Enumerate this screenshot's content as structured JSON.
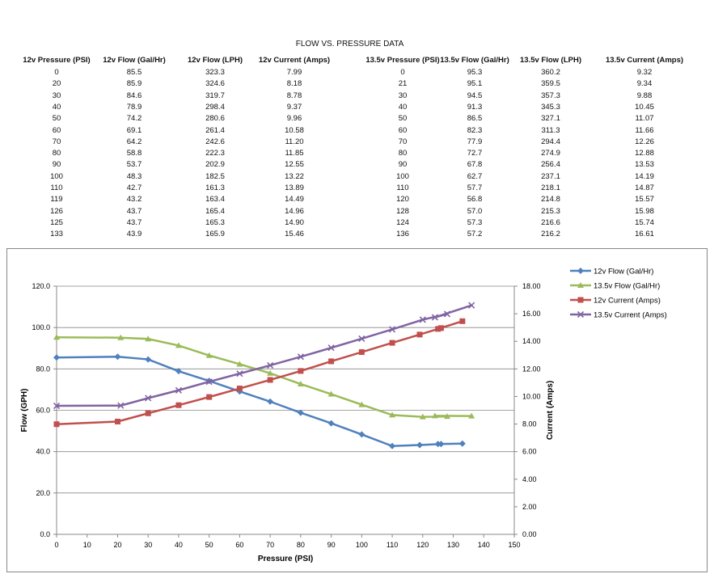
{
  "chart_data": {
    "type": "line",
    "table": {
      "title": "FLOW  VS.  PRESSURE DATA",
      "headers": [
        "12v Pressure (PSI)",
        "12v Flow (Gal/Hr)",
        "12v Flow (LPH)",
        "12v Current (Amps)",
        "13.5v Pressure (PSI)",
        "13.5v Flow (Gal/Hr)",
        "13.5v Flow (LPH)",
        "13.5v Current (Amps)"
      ],
      "rows": [
        [
          "0",
          "85.5",
          "323.3",
          "7.99",
          "0",
          "95.3",
          "360.2",
          "9.32"
        ],
        [
          "20",
          "85.9",
          "324.6",
          "8.18",
          "21",
          "95.1",
          "359.5",
          "9.34"
        ],
        [
          "30",
          "84.6",
          "319.7",
          "8.78",
          "30",
          "94.5",
          "357.3",
          "9.88"
        ],
        [
          "40",
          "78.9",
          "298.4",
          "9.37",
          "40",
          "91.3",
          "345.3",
          "10.45"
        ],
        [
          "50",
          "74.2",
          "280.6",
          "9.96",
          "50",
          "86.5",
          "327.1",
          "11.07"
        ],
        [
          "60",
          "69.1",
          "261.4",
          "10.58",
          "60",
          "82.3",
          "311.3",
          "11.66"
        ],
        [
          "70",
          "64.2",
          "242.6",
          "11.20",
          "70",
          "77.9",
          "294.4",
          "12.26"
        ],
        [
          "80",
          "58.8",
          "222.3",
          "11.85",
          "80",
          "72.7",
          "274.9",
          "12.88"
        ],
        [
          "90",
          "53.7",
          "202.9",
          "12.55",
          "90",
          "67.8",
          "256.4",
          "13.53"
        ],
        [
          "100",
          "48.3",
          "182.5",
          "13.22",
          "100",
          "62.7",
          "237.1",
          "14.19"
        ],
        [
          "110",
          "42.7",
          "161.3",
          "13.89",
          "110",
          "57.7",
          "218.1",
          "14.87"
        ],
        [
          "119",
          "43.2",
          "163.4",
          "14.49",
          "120",
          "56.8",
          "214.8",
          "15.57"
        ],
        [
          "126",
          "43.7",
          "165.4",
          "14.96",
          "128",
          "57.0",
          "215.3",
          "15.98"
        ],
        [
          "125",
          "43.7",
          "165.3",
          "14.90",
          "124",
          "57.3",
          "216.6",
          "15.74"
        ],
        [
          "133",
          "43.9",
          "165.9",
          "15.46",
          "136",
          "57.2",
          "216.2",
          "16.61"
        ]
      ]
    },
    "xlabel": "Pressure (PSI)",
    "ylabel": "Flow (GPH)",
    "y2label": "Current (Amps)",
    "xlim": [
      0,
      150
    ],
    "ylim": [
      0,
      120
    ],
    "y2lim": [
      0,
      18
    ],
    "xticks": [
      "0",
      "10",
      "20",
      "30",
      "40",
      "50",
      "60",
      "70",
      "80",
      "90",
      "100",
      "110",
      "120",
      "130",
      "140",
      "150"
    ],
    "yticks": [
      "0.0",
      "20.0",
      "40.0",
      "60.0",
      "80.0",
      "100.0",
      "120.0"
    ],
    "y2ticks": [
      "0.00",
      "2.00",
      "4.00",
      "6.00",
      "8.00",
      "10.00",
      "12.00",
      "14.00",
      "16.00",
      "18.00"
    ],
    "grid": true,
    "legend_position": "right",
    "series": [
      {
        "name": "12v Flow (Gal/Hr)",
        "axis": "left",
        "color": "#4F81BD",
        "marker": "diamond",
        "x": [
          0,
          20,
          30,
          40,
          50,
          60,
          70,
          80,
          90,
          100,
          110,
          119,
          126,
          125,
          133
        ],
        "y": [
          85.5,
          85.9,
          84.6,
          78.9,
          74.2,
          69.1,
          64.2,
          58.8,
          53.7,
          48.3,
          42.7,
          43.2,
          43.7,
          43.7,
          43.9
        ]
      },
      {
        "name": "13.5v Flow (Gal/Hr)",
        "axis": "left",
        "color": "#9BBB59",
        "marker": "triangle",
        "x": [
          0,
          21,
          30,
          40,
          50,
          60,
          70,
          80,
          90,
          100,
          110,
          120,
          128,
          124,
          136
        ],
        "y": [
          95.3,
          95.1,
          94.5,
          91.3,
          86.5,
          82.3,
          77.9,
          72.7,
          67.8,
          62.7,
          57.7,
          56.8,
          57.0,
          57.3,
          57.2
        ]
      },
      {
        "name": "12v Current (Amps)",
        "axis": "right",
        "color": "#C0504D",
        "marker": "square",
        "x": [
          0,
          20,
          30,
          40,
          50,
          60,
          70,
          80,
          90,
          100,
          110,
          119,
          126,
          125,
          133
        ],
        "y": [
          7.99,
          8.18,
          8.78,
          9.37,
          9.96,
          10.58,
          11.2,
          11.85,
          12.55,
          13.22,
          13.89,
          14.49,
          14.96,
          14.9,
          15.46
        ]
      },
      {
        "name": "13.5v Current (Amps)",
        "axis": "right",
        "color": "#8064A2",
        "marker": "x",
        "x": [
          0,
          21,
          30,
          40,
          50,
          60,
          70,
          80,
          90,
          100,
          110,
          120,
          128,
          124,
          136
        ],
        "y": [
          9.32,
          9.34,
          9.88,
          10.45,
          11.07,
          11.66,
          12.26,
          12.88,
          13.53,
          14.19,
          14.87,
          15.57,
          15.98,
          15.74,
          16.61
        ]
      }
    ]
  }
}
